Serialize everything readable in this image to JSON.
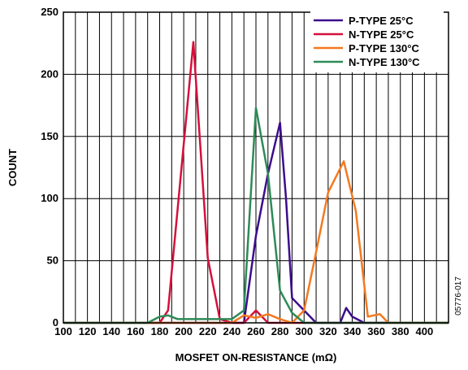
{
  "chart_data": {
    "type": "line",
    "xlabel": "MOSFET ON-RESISTANCE (mΩ)",
    "ylabel": "COUNT",
    "xlim": [
      100,
      420
    ],
    "ylim": [
      0,
      250
    ],
    "x_ticks": [
      "100",
      "120",
      "140",
      "160",
      "180",
      "200",
      "220",
      "240",
      "260",
      "280",
      "300",
      "320",
      "340",
      "360",
      "380",
      "400"
    ],
    "y_ticks": [
      "0",
      "50",
      "100",
      "150",
      "200",
      "250"
    ],
    "grid": true,
    "legend_position": "top-right",
    "series": [
      {
        "name": "P-TYPE 25°C",
        "color": "#3c0c8c",
        "x": [
          100,
          240,
          250,
          260,
          270,
          280,
          285,
          290,
          300,
          310,
          320,
          330,
          335,
          340,
          350,
          420
        ],
        "y": [
          0,
          0,
          0,
          70,
          120,
          161,
          100,
          20,
          10,
          0,
          0,
          0,
          12,
          5,
          0,
          0
        ]
      },
      {
        "name": "N-TYPE 25°C",
        "color": "#d4103c",
        "x": [
          100,
          180,
          187,
          208,
          220,
          230,
          240,
          250,
          260,
          270,
          280,
          420
        ],
        "y": [
          0,
          0,
          10,
          226,
          52,
          3,
          0,
          0,
          10,
          0,
          0,
          0
        ]
      },
      {
        "name": "P-TYPE 130°C",
        "color": "#f47920",
        "x": [
          100,
          240,
          250,
          260,
          270,
          280,
          290,
          300,
          310,
          320,
          333,
          343,
          353,
          363,
          370,
          420
        ],
        "y": [
          0,
          0,
          6,
          4,
          7,
          3,
          0,
          10,
          57,
          105,
          130,
          90,
          5,
          7,
          0,
          0
        ]
      },
      {
        "name": "N-TYPE 130°C",
        "color": "#2e8b57",
        "x": [
          100,
          170,
          180,
          187,
          195,
          240,
          250,
          260,
          270,
          280,
          290,
          300,
          310,
          420
        ],
        "y": [
          0,
          0,
          5,
          6,
          3,
          3,
          10,
          173,
          120,
          26,
          8,
          0,
          0,
          0
        ]
      }
    ]
  },
  "figure_id": "05776-017"
}
